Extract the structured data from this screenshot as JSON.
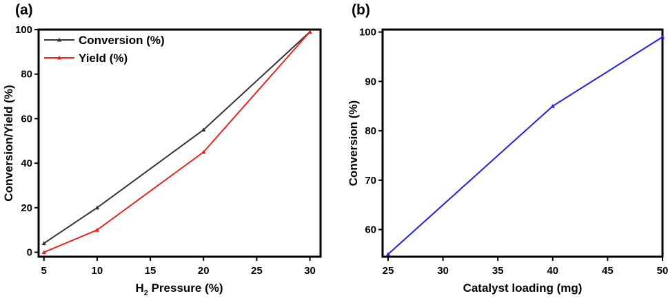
{
  "chart_data": [
    {
      "panel_label": "(a)",
      "type": "line",
      "xlabel_main": "H",
      "xlabel_sub": "2",
      "xlabel_rest": " Pressure (%)",
      "ylabel": "Conversion/Yield (%)",
      "xlim": [
        4.5,
        31
      ],
      "ylim": [
        -2,
        100
      ],
      "xticks": [
        5,
        10,
        15,
        20,
        25,
        30
      ],
      "yticks": [
        0,
        20,
        40,
        60,
        80,
        100
      ],
      "legend_position": "top-left",
      "grid": false,
      "series": [
        {
          "name": "Conversion (%)",
          "color": "#333333",
          "marker": "triangle",
          "x": [
            5,
            10,
            20,
            30
          ],
          "y": [
            4,
            20,
            55,
            99
          ]
        },
        {
          "name": "Yield (%)",
          "color": "#e8231f",
          "marker": "triangle",
          "x": [
            5,
            10,
            20,
            30
          ],
          "y": [
            0,
            10,
            45,
            99
          ]
        }
      ]
    },
    {
      "panel_label": "(b)",
      "type": "line",
      "xlabel": "Catalyst loading (mg)",
      "ylabel": "Conversion (%)",
      "xlim": [
        24.5,
        50
      ],
      "ylim": [
        54.5,
        100.5
      ],
      "xticks": [
        25,
        30,
        35,
        40,
        45,
        50
      ],
      "yticks": [
        60,
        70,
        80,
        90,
        100
      ],
      "grid": false,
      "series": [
        {
          "color": "#1f1fe6",
          "marker": "triangle",
          "x": [
            25,
            40,
            50
          ],
          "y": [
            55,
            85,
            99
          ]
        }
      ]
    }
  ]
}
